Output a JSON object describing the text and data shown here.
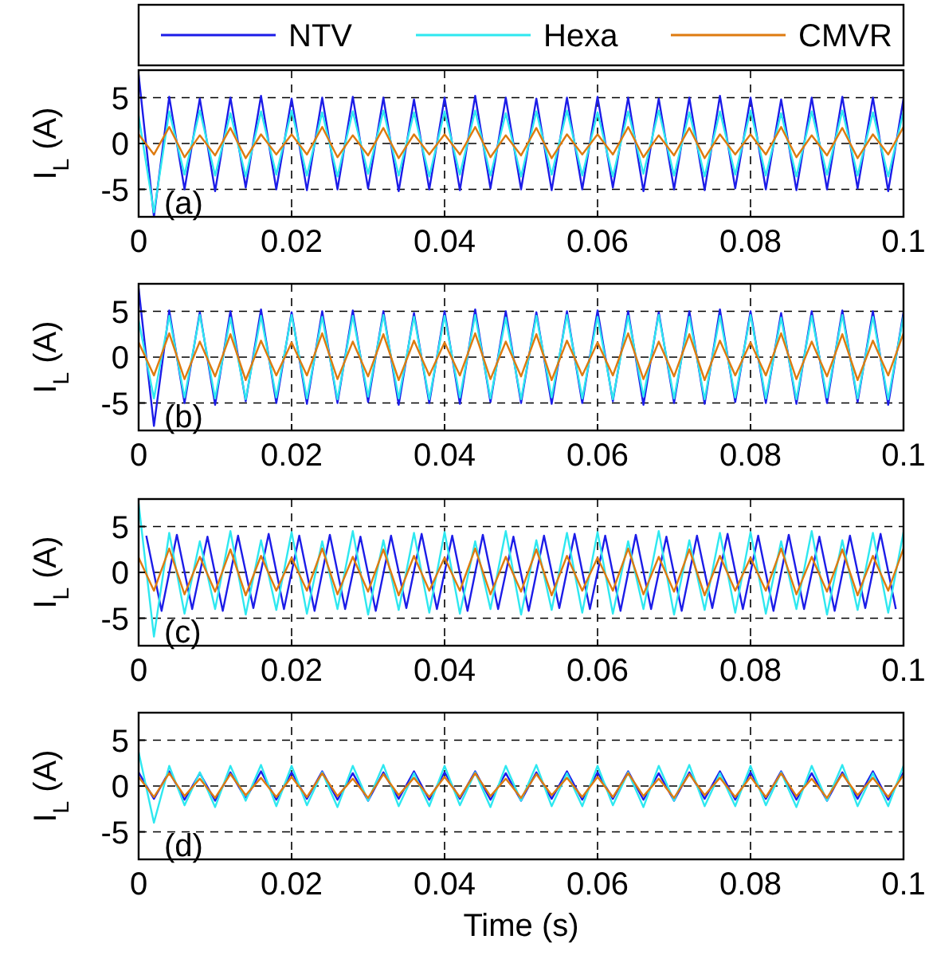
{
  "chart_data": [
    {
      "type": "line",
      "ylabel": "I$_{L}$ (A)",
      "annotations": [
        "(a)"
      ],
      "legend": "top",
      "grid": true,
      "xlim": [
        0,
        0.1
      ],
      "ylim": [
        -8,
        8
      ],
      "yticks": [
        -5,
        0,
        5
      ],
      "xticks": [
        0,
        0.02,
        0.04,
        0.06,
        0.08,
        0.1
      ],
      "x": [
        0,
        0.002,
        0.004,
        0.006,
        0.008,
        0.01,
        0.012,
        0.014,
        0.016,
        0.018,
        0.02,
        0.022,
        0.024,
        0.026,
        0.028,
        0.03,
        0.032,
        0.034,
        0.036,
        0.038,
        0.04,
        0.042,
        0.044,
        0.046,
        0.048,
        0.05,
        0.052,
        0.054,
        0.056,
        0.058,
        0.06,
        0.062,
        0.064,
        0.066,
        0.068,
        0.07,
        0.072,
        0.074,
        0.076,
        0.078,
        0.08,
        0.082,
        0.084,
        0.086,
        0.088,
        0.09,
        0.092,
        0.094,
        0.096,
        0.098,
        0.1
      ],
      "series": [
        {
          "name": "NTV",
          "color": "#1c1ce8",
          "values": [
            7.5,
            -8,
            5.1,
            -5,
            4.9,
            -5.2,
            5,
            -4.8,
            5.2,
            -5,
            4.9,
            -5.1,
            5,
            -5,
            5.1,
            -4.9,
            5,
            -5.2,
            4.8,
            -5,
            5,
            -5.1,
            5.2,
            -4.9,
            5,
            -5,
            4.9,
            -5.1,
            5,
            -5,
            5.1,
            -4.8,
            5,
            -5.2,
            4.9,
            -5,
            5,
            -5.1,
            5.2,
            -4.9,
            5,
            -5,
            4.8,
            -5.1,
            5,
            -5,
            5.1,
            -4.9,
            5,
            -5.2,
            4.9
          ]
        },
        {
          "name": "Hexa",
          "color": "#2ee8f0",
          "values": [
            3,
            -7.5,
            3.5,
            -3.4,
            3.6,
            -3.5,
            3.3,
            -3.6,
            3.5,
            -3.4,
            3.6,
            -3.5,
            3.4,
            -3.6,
            3.5,
            -3.3,
            3.6,
            -3.5,
            3.4,
            -3.6,
            3.5,
            -3.4,
            3.6,
            -3.5,
            3.3,
            -3.6,
            3.5,
            -3.4,
            3.6,
            -3.5,
            3.4,
            -3.6,
            3.5,
            -3.3,
            3.6,
            -3.5,
            3.4,
            -3.6,
            3.5,
            -3.4,
            3.6,
            -3.5,
            3.3,
            -3.6,
            3.5,
            -3.4,
            3.6,
            -3.5,
            3.4,
            -3.6,
            3.5
          ]
        },
        {
          "name": "CMVR",
          "color": "#de7b10",
          "values": [
            1,
            -1.2,
            1.8,
            -1.5,
            0.9,
            -1.3,
            1.7,
            -1.6,
            1,
            -1.2,
            1,
            -1.2,
            1.8,
            -1.5,
            0.9,
            -1.3,
            1.7,
            -1.6,
            1,
            -1.2,
            1,
            -1.2,
            1.8,
            -1.5,
            0.9,
            -1.3,
            1.7,
            -1.6,
            1,
            -1.2,
            1,
            -1.2,
            1.8,
            -1.5,
            0.9,
            -1.3,
            1.7,
            -1.6,
            1,
            -1.2,
            1,
            -1.2,
            1.8,
            -1.5,
            0.9,
            -1.3,
            1.7,
            -1.6,
            1,
            -1.2,
            1.8
          ]
        }
      ]
    },
    {
      "type": "line",
      "ylabel": "I$_{L}$ (A)",
      "annotations": [
        "(b)"
      ],
      "grid": true,
      "xlim": [
        0,
        0.1
      ],
      "ylim": [
        -8,
        8
      ],
      "yticks": [
        -5,
        0,
        5
      ],
      "xticks": [
        0,
        0.02,
        0.04,
        0.06,
        0.08,
        0.1
      ],
      "x": [
        0,
        0.002,
        0.004,
        0.006,
        0.008,
        0.01,
        0.012,
        0.014,
        0.016,
        0.018,
        0.02,
        0.022,
        0.024,
        0.026,
        0.028,
        0.03,
        0.032,
        0.034,
        0.036,
        0.038,
        0.04,
        0.042,
        0.044,
        0.046,
        0.048,
        0.05,
        0.052,
        0.054,
        0.056,
        0.058,
        0.06,
        0.062,
        0.064,
        0.066,
        0.068,
        0.07,
        0.072,
        0.074,
        0.076,
        0.078,
        0.08,
        0.082,
        0.084,
        0.086,
        0.088,
        0.09,
        0.092,
        0.094,
        0.096,
        0.098,
        0.1
      ],
      "series": [
        {
          "color": "#1c1ce8",
          "values": [
            7.5,
            -7.5,
            5.1,
            -5,
            4.9,
            -5.2,
            5,
            -4.8,
            5.2,
            -5,
            4.9,
            -5.1,
            5,
            -5,
            5.1,
            -4.9,
            5,
            -5.2,
            4.8,
            -5,
            5,
            -5.1,
            5.2,
            -4.9,
            5,
            -5,
            4.9,
            -5.1,
            5,
            -5,
            5.1,
            -4.8,
            5,
            -5.2,
            4.9,
            -5,
            5,
            -5.1,
            5.2,
            -4.9,
            5,
            -5,
            4.8,
            -5.1,
            5,
            -5,
            5.1,
            -4.9,
            5,
            -5.2,
            4.9
          ]
        },
        {
          "color": "#2ee8f0",
          "values": [
            4,
            -4.5,
            4.5,
            -4.4,
            4.6,
            -4.5,
            4.3,
            -4.6,
            4.5,
            -4.4,
            4.6,
            -4.5,
            4.4,
            -4.6,
            4.5,
            -4.3,
            4.6,
            -4.5,
            4.4,
            -4.6,
            4.5,
            -4.4,
            4.6,
            -4.5,
            4.3,
            -4.6,
            4.5,
            -4.4,
            4.6,
            -4.5,
            4.4,
            -4.6,
            4.5,
            -4.3,
            4.6,
            -4.5,
            4.4,
            -4.6,
            4.5,
            -4.4,
            4.6,
            -4.5,
            4.3,
            -4.6,
            4.5,
            -4.4,
            4.6,
            -4.5,
            4.4,
            -4.6,
            4.5
          ]
        },
        {
          "color": "#de7b10",
          "values": [
            1.6,
            -2,
            2.6,
            -2.4,
            1.7,
            -2.1,
            2.5,
            -2.5,
            1.8,
            -2,
            1.6,
            -2,
            2.6,
            -2.4,
            1.7,
            -2.1,
            2.5,
            -2.5,
            1.8,
            -2,
            1.6,
            -2,
            2.6,
            -2.4,
            1.7,
            -2.1,
            2.5,
            -2.5,
            1.8,
            -2,
            1.6,
            -2,
            2.6,
            -2.4,
            1.7,
            -2.1,
            2.5,
            -2.5,
            1.8,
            -2,
            1.6,
            -2,
            2.6,
            -2.4,
            1.7,
            -2.1,
            2.5,
            -2.5,
            1.8,
            -2,
            2.6
          ]
        }
      ]
    },
    {
      "type": "line",
      "ylabel": "I$_{L}$ (A)",
      "annotations": [
        "(c)"
      ],
      "grid": true,
      "xlim": [
        0,
        0.1
      ],
      "ylim": [
        -8,
        8
      ],
      "yticks": [
        -5,
        0,
        5
      ],
      "xticks": [
        0,
        0.02,
        0.04,
        0.06,
        0.08,
        0.1
      ],
      "x": [
        0,
        0.002,
        0.004,
        0.006,
        0.008,
        0.01,
        0.012,
        0.014,
        0.016,
        0.018,
        0.02,
        0.022,
        0.024,
        0.026,
        0.028,
        0.03,
        0.032,
        0.034,
        0.036,
        0.038,
        0.04,
        0.042,
        0.044,
        0.046,
        0.048,
        0.05,
        0.052,
        0.054,
        0.056,
        0.058,
        0.06,
        0.062,
        0.064,
        0.066,
        0.068,
        0.07,
        0.072,
        0.074,
        0.076,
        0.078,
        0.08,
        0.082,
        0.084,
        0.086,
        0.088,
        0.09,
        0.092,
        0.094,
        0.096,
        0.098,
        0.1
      ],
      "series": [
        {
          "color": "#1c1ce8",
          "x": [
            0.001,
            0.003,
            0.005,
            0.007,
            0.009,
            0.011,
            0.013,
            0.015,
            0.017,
            0.019,
            0.021,
            0.023,
            0.025,
            0.027,
            0.029,
            0.031,
            0.033,
            0.035,
            0.037,
            0.039,
            0.041,
            0.043,
            0.045,
            0.047,
            0.049,
            0.051,
            0.053,
            0.055,
            0.057,
            0.059,
            0.061,
            0.063,
            0.065,
            0.067,
            0.069,
            0.071,
            0.073,
            0.075,
            0.077,
            0.079,
            0.081,
            0.083,
            0.085,
            0.087,
            0.089,
            0.091,
            0.093,
            0.095,
            0.097,
            0.099
          ],
          "values": [
            4,
            -4.2,
            4.1,
            -4,
            3.9,
            -4.2,
            4,
            -3.9,
            4.2,
            -4,
            4,
            -4.2,
            4.1,
            -4,
            3.9,
            -4.2,
            4,
            -3.9,
            4.2,
            -4,
            4,
            -4.2,
            4.1,
            -4,
            3.9,
            -4.2,
            4,
            -3.9,
            4.2,
            -4,
            4,
            -4.2,
            4.1,
            -4,
            3.9,
            -4.2,
            4,
            -3.9,
            4.2,
            -4,
            4,
            -4.2,
            4.1,
            -4,
            3.9,
            -4.2,
            4,
            -3.9,
            4.2,
            -4
          ]
        },
        {
          "color": "#2ee8f0",
          "values": [
            7.5,
            -7,
            4.3,
            -4.5,
            3.4,
            -4,
            4.5,
            -4.6,
            3.5,
            -4.1,
            4.4,
            -4.5,
            3.4,
            -4,
            4.5,
            -4.6,
            3.5,
            -4.1,
            4.3,
            -4.4,
            4.4,
            -4.5,
            3.4,
            -4,
            4.5,
            -4.6,
            3.5,
            -4.1,
            4.3,
            -4.4,
            4.4,
            -4.5,
            3.4,
            -4,
            4.5,
            -4.6,
            3.5,
            -4.1,
            4.3,
            -4.4,
            4.4,
            -4.5,
            3.4,
            -4,
            4.5,
            -4.6,
            3.5,
            -4.1,
            4.3,
            -4.4,
            4.4
          ]
        },
        {
          "color": "#de7b10",
          "values": [
            1.6,
            -2,
            2.6,
            -2.4,
            1.7,
            -2.1,
            2.5,
            -2.5,
            1.8,
            -2,
            1.6,
            -2,
            2.6,
            -2.4,
            1.7,
            -2.1,
            2.5,
            -2.5,
            1.8,
            -2,
            1.6,
            -2,
            2.6,
            -2.4,
            1.7,
            -2.1,
            2.5,
            -2.5,
            1.8,
            -2,
            1.6,
            -2,
            2.6,
            -2.4,
            1.7,
            -2.1,
            2.5,
            -2.5,
            1.8,
            -2,
            1.6,
            -2,
            2.6,
            -2.4,
            1.7,
            -2.1,
            2.5,
            -2.5,
            1.8,
            -2,
            2.6
          ]
        }
      ]
    },
    {
      "type": "line",
      "xlabel": "Time (s)",
      "ylabel": "I$_{L}$ (A)",
      "annotations": [
        "(d)"
      ],
      "grid": true,
      "xlim": [
        0,
        0.1
      ],
      "ylim": [
        -8,
        8
      ],
      "yticks": [
        -5,
        0,
        5
      ],
      "xticks": [
        0,
        0.02,
        0.04,
        0.06,
        0.08,
        0.1
      ],
      "x": [
        0,
        0.002,
        0.004,
        0.006,
        0.008,
        0.01,
        0.012,
        0.014,
        0.016,
        0.018,
        0.02,
        0.022,
        0.024,
        0.026,
        0.028,
        0.03,
        0.032,
        0.034,
        0.036,
        0.038,
        0.04,
        0.042,
        0.044,
        0.046,
        0.048,
        0.05,
        0.052,
        0.054,
        0.056,
        0.058,
        0.06,
        0.062,
        0.064,
        0.066,
        0.068,
        0.07,
        0.072,
        0.074,
        0.076,
        0.078,
        0.08,
        0.082,
        0.084,
        0.086,
        0.088,
        0.09,
        0.092,
        0.094,
        0.096,
        0.098,
        0.1
      ],
      "series": [
        {
          "color": "#1c1ce8",
          "values": [
            1.5,
            -1.4,
            1.6,
            -1.5,
            1.4,
            -1.6,
            1.5,
            -1.4,
            1.6,
            -1.5,
            1.5,
            -1.4,
            1.6,
            -1.5,
            1.4,
            -1.6,
            1.5,
            -1.4,
            1.6,
            -1.5,
            1.5,
            -1.4,
            1.6,
            -1.5,
            1.4,
            -1.6,
            1.5,
            -1.4,
            1.6,
            -1.5,
            1.5,
            -1.4,
            1.6,
            -1.5,
            1.4,
            -1.6,
            1.5,
            -1.4,
            1.6,
            -1.5,
            1.5,
            -1.4,
            1.6,
            -1.5,
            1.4,
            -1.6,
            1.5,
            -1.4,
            1.6,
            -1.5,
            1.5
          ]
        },
        {
          "color": "#2ee8f0",
          "values": [
            3.7,
            -4,
            2.2,
            -2.1,
            1.5,
            -2.3,
            2.2,
            -1.6,
            2.3,
            -2.2,
            2.2,
            -2.1,
            1.5,
            -2.3,
            2.2,
            -1.6,
            2.3,
            -2.2,
            1.4,
            -2.2,
            2.2,
            -2.1,
            1.5,
            -2.3,
            2.2,
            -1.6,
            2.3,
            -2.2,
            1.4,
            -2.2,
            2.2,
            -2.1,
            1.5,
            -2.3,
            2.2,
            -1.6,
            2.3,
            -2.2,
            1.4,
            -2.2,
            2.2,
            -2.1,
            1.5,
            -2.3,
            2.2,
            -1.6,
            2.3,
            -2.2,
            1.4,
            -2.2,
            2.2
          ]
        },
        {
          "color": "#de7b10",
          "values": [
            1,
            -1.2,
            1.4,
            -1.1,
            0.8,
            -1.3,
            1.3,
            -1,
            0.9,
            -1.2,
            1,
            -1.2,
            1.4,
            -1.1,
            0.8,
            -1.3,
            1.3,
            -1,
            0.9,
            -1.2,
            1,
            -1.2,
            1.4,
            -1.1,
            0.8,
            -1.3,
            1.3,
            -1,
            0.9,
            -1.2,
            1,
            -1.2,
            1.4,
            -1.1,
            0.8,
            -1.3,
            1.3,
            -1,
            0.9,
            -1.2,
            1,
            -1.2,
            1.4,
            -1.1,
            0.8,
            -1.3,
            1.3,
            -1,
            0.9,
            -1.2,
            1.2
          ]
        }
      ]
    }
  ]
}
